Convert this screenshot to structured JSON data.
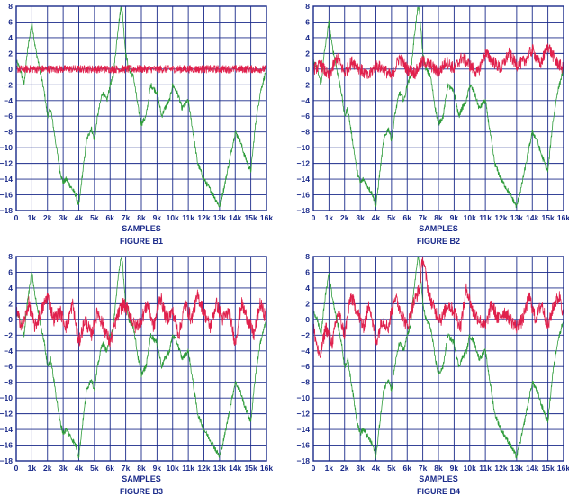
{
  "colors": {
    "frame": "#1a2a8a",
    "grid": "#1a2a8a",
    "green": "#2e9c3a",
    "red": "#e0204c"
  },
  "chart_data": [
    {
      "type": "line",
      "title": "FIGURE B1",
      "xlabel": "SAMPLES",
      "x_ticks": [
        "0",
        "1k",
        "2k",
        "3k",
        "4k",
        "5k",
        "6k",
        "7k",
        "8k",
        "9k",
        "10k",
        "11k",
        "12k",
        "13k",
        "14k",
        "15k",
        "16k"
      ],
      "y_ticks": [
        "8",
        "6",
        "4",
        "2",
        "0",
        "−2",
        "−4",
        "−6",
        "−8",
        "−10",
        "−12",
        "−14",
        "−16",
        "−18"
      ],
      "xlim": [
        0,
        16000
      ],
      "ylim": [
        -18,
        8
      ],
      "grid": true,
      "series": [
        {
          "color": "green",
          "x": [
            0,
            250,
            500,
            700,
            1000,
            1200,
            1500,
            1800,
            2000,
            2200,
            2500,
            2800,
            3000,
            3200,
            3500,
            3800,
            4000,
            4200,
            4500,
            4800,
            5000,
            5200,
            5500,
            5800,
            6000,
            6200,
            6500,
            6700,
            6800,
            7000,
            7200,
            7500,
            7800,
            8000,
            8300,
            8600,
            9000,
            9300,
            9500,
            9800,
            10000,
            10300,
            10600,
            11000,
            11300,
            11600,
            12000,
            12300,
            12600,
            13000,
            13300,
            13600,
            14000,
            14300,
            14600,
            15000,
            15300,
            15600,
            16000
          ],
          "y": [
            1,
            0,
            -2,
            2,
            6,
            3,
            0,
            -3,
            -6,
            -5,
            -9,
            -13,
            -14.5,
            -14,
            -15,
            -16,
            -17.5,
            -14,
            -9,
            -7.5,
            -9,
            -6,
            -3,
            -4,
            -2,
            -1,
            5,
            8,
            7,
            2,
            0,
            -1,
            -5,
            -7,
            -6,
            -2,
            -3,
            -6,
            -5,
            -4,
            -2,
            -3,
            -5,
            -4,
            -8,
            -12,
            -14,
            -15,
            -16,
            -17.5,
            -15,
            -12,
            -8,
            -9,
            -11,
            -13,
            -7,
            -3,
            0
          ]
        },
        {
          "color": "red",
          "x": [
            0,
            16000
          ],
          "y": [
            0,
            0
          ],
          "noise": 0.5
        }
      ]
    },
    {
      "type": "line",
      "title": "FIGURE B2",
      "xlabel": "SAMPLES",
      "x_ticks": [
        "0",
        "1k",
        "2k",
        "3k",
        "4k",
        "5k",
        "6k",
        "7k",
        "8k",
        "9k",
        "10k",
        "11k",
        "12k",
        "13k",
        "14k",
        "15k",
        "16k"
      ],
      "y_ticks": [
        "8",
        "6",
        "4",
        "2",
        "0",
        "−2",
        "−4",
        "−6",
        "−8",
        "−10",
        "−12",
        "−14",
        "−16",
        "−18"
      ],
      "xlim": [
        0,
        16000
      ],
      "ylim": [
        -18,
        8
      ],
      "grid": true,
      "series": [
        {
          "color": "green",
          "x": [
            0,
            250,
            500,
            700,
            1000,
            1200,
            1500,
            1800,
            2000,
            2200,
            2500,
            2800,
            3000,
            3200,
            3500,
            3800,
            4000,
            4200,
            4500,
            4800,
            5000,
            5200,
            5500,
            5800,
            6000,
            6200,
            6500,
            6700,
            6800,
            7000,
            7200,
            7500,
            7800,
            8000,
            8300,
            8600,
            9000,
            9300,
            9500,
            9800,
            10000,
            10300,
            10600,
            11000,
            11300,
            11600,
            12000,
            12300,
            12600,
            13000,
            13300,
            13600,
            14000,
            14300,
            14600,
            15000,
            15300,
            15600,
            16000
          ],
          "y": [
            1,
            0,
            -2,
            2,
            6,
            3,
            0,
            -3,
            -6,
            -5,
            -9,
            -13,
            -14.5,
            -14,
            -15,
            -16,
            -17.5,
            -14,
            -9,
            -7.5,
            -9,
            -6,
            -3,
            -4,
            -2,
            -1,
            5,
            8,
            7,
            2,
            0,
            -1,
            -5,
            -7,
            -6,
            -2,
            -3,
            -6,
            -5,
            -4,
            -2,
            -3,
            -5,
            -4,
            -8,
            -12,
            -14,
            -15,
            -16,
            -17.5,
            -15,
            -12,
            -8,
            -9,
            -11,
            -13,
            -7,
            -3,
            0
          ]
        },
        {
          "color": "red",
          "x": [
            0,
            500,
            1000,
            1500,
            2000,
            2500,
            3000,
            3500,
            4000,
            4500,
            5000,
            5500,
            6000,
            6500,
            7000,
            7500,
            8000,
            8500,
            9000,
            9500,
            10000,
            10500,
            11000,
            11500,
            12000,
            12500,
            13000,
            13500,
            14000,
            14500,
            15000,
            15500,
            16000
          ],
          "y": [
            0,
            0.5,
            -1,
            1.5,
            -0.5,
            1,
            0,
            -1,
            0.5,
            0,
            -1,
            1.5,
            0,
            -0.5,
            1,
            0.5,
            -0.5,
            1,
            0,
            1.5,
            0.5,
            -0.5,
            2,
            1,
            0,
            2,
            0.5,
            1,
            2.5,
            0.5,
            3,
            1,
            0
          ],
          "noise": 0.8
        }
      ]
    },
    {
      "type": "line",
      "title": "FIGURE B3",
      "xlabel": "SAMPLES",
      "x_ticks": [
        "0",
        "1k",
        "2k",
        "3k",
        "4k",
        "5k",
        "6k",
        "7k",
        "8k",
        "9k",
        "10k",
        "11k",
        "12k",
        "13k",
        "14k",
        "15k",
        "16k"
      ],
      "y_ticks": [
        "8",
        "6",
        "4",
        "2",
        "0",
        "−2",
        "−4",
        "−6",
        "−8",
        "−10",
        "−12",
        "−14",
        "−16",
        "−18"
      ],
      "xlim": [
        0,
        16000
      ],
      "ylim": [
        -18,
        8
      ],
      "grid": true,
      "series": [
        {
          "color": "green",
          "x": [
            0,
            250,
            500,
            700,
            1000,
            1200,
            1500,
            1800,
            2000,
            2200,
            2500,
            2800,
            3000,
            3200,
            3500,
            3800,
            4000,
            4200,
            4500,
            4800,
            5000,
            5200,
            5500,
            5800,
            6000,
            6200,
            6500,
            6700,
            6800,
            7000,
            7200,
            7500,
            7800,
            8000,
            8300,
            8600,
            9000,
            9300,
            9500,
            9800,
            10000,
            10300,
            10600,
            11000,
            11300,
            11600,
            12000,
            12300,
            12600,
            13000,
            13300,
            13600,
            14000,
            14300,
            14600,
            15000,
            15300,
            15600,
            16000
          ],
          "y": [
            1,
            0,
            -2,
            2,
            6,
            3,
            0,
            -3,
            -6,
            -5,
            -9,
            -13,
            -14.5,
            -14,
            -15,
            -16,
            -17.5,
            -14,
            -9,
            -7.5,
            -9,
            -6,
            -3,
            -4,
            -2,
            -1,
            5,
            8,
            7,
            2,
            0,
            -1,
            -5,
            -7,
            -6,
            -2,
            -3,
            -6,
            -5,
            -4,
            -2,
            -3,
            -5,
            -4,
            -8,
            -12,
            -14,
            -15,
            -16,
            -17.5,
            -15,
            -12,
            -8,
            -9,
            -11,
            -13,
            -7,
            -3,
            0
          ]
        },
        {
          "color": "red",
          "x": [
            0,
            400,
            800,
            1200,
            1600,
            2000,
            2400,
            2800,
            3200,
            3600,
            4000,
            4400,
            4800,
            5200,
            5600,
            6000,
            6400,
            6800,
            7200,
            7600,
            8000,
            8400,
            8800,
            9200,
            9600,
            10000,
            10400,
            10800,
            11200,
            11600,
            12000,
            12400,
            12800,
            13200,
            13600,
            14000,
            14400,
            14800,
            15200,
            15600,
            16000
          ],
          "y": [
            1,
            -1,
            2,
            -1,
            1,
            3,
            0,
            1,
            -1,
            2,
            -3,
            0,
            -2,
            1,
            -1,
            -3,
            0,
            2,
            1,
            -1,
            0,
            2,
            -1,
            3,
            0,
            1,
            -2,
            2,
            0,
            3,
            1,
            -1,
            2,
            0,
            1,
            -3,
            2,
            0,
            -2,
            2,
            0
          ],
          "noise": 0.9
        }
      ]
    },
    {
      "type": "line",
      "title": "FIGURE B4",
      "xlabel": "SAMPLES",
      "x_ticks": [
        "0",
        "1k",
        "2k",
        "3k",
        "4k",
        "5k",
        "6k",
        "7k",
        "8k",
        "9k",
        "10k",
        "11k",
        "12k",
        "13k",
        "14k",
        "15k",
        "16k"
      ],
      "y_ticks": [
        "8",
        "6",
        "4",
        "2",
        "0",
        "−2",
        "−4",
        "−6",
        "−8",
        "−10",
        "−12",
        "−14",
        "−16",
        "−18"
      ],
      "xlim": [
        0,
        16000
      ],
      "ylim": [
        -18,
        8
      ],
      "grid": true,
      "series": [
        {
          "color": "green",
          "x": [
            0,
            250,
            500,
            700,
            1000,
            1200,
            1500,
            1800,
            2000,
            2200,
            2500,
            2800,
            3000,
            3200,
            3500,
            3800,
            4000,
            4200,
            4500,
            4800,
            5000,
            5200,
            5500,
            5800,
            6000,
            6200,
            6500,
            6700,
            6800,
            7000,
            7200,
            7500,
            7800,
            8000,
            8300,
            8600,
            9000,
            9300,
            9500,
            9800,
            10000,
            10300,
            10600,
            11000,
            11300,
            11600,
            12000,
            12300,
            12600,
            13000,
            13300,
            13600,
            14000,
            14300,
            14600,
            15000,
            15300,
            15600,
            16000
          ],
          "y": [
            1,
            0,
            -2,
            2,
            6,
            3,
            0,
            -3,
            -6,
            -5,
            -9,
            -13,
            -14.5,
            -14,
            -15,
            -16,
            -17.5,
            -14,
            -9,
            -7.5,
            -9,
            -6,
            -3,
            -4,
            -2,
            -1,
            5,
            8,
            7,
            2,
            0,
            -1,
            -5,
            -7,
            -6,
            -2,
            -3,
            -6,
            -5,
            -4,
            -2,
            -3,
            -5,
            -4,
            -8,
            -12,
            -14,
            -15,
            -16,
            -17.5,
            -15,
            -12,
            -8,
            -9,
            -11,
            -13,
            -7,
            -3,
            0
          ]
        },
        {
          "color": "red",
          "x": [
            0,
            400,
            800,
            1200,
            1600,
            2000,
            2400,
            2800,
            3200,
            3600,
            4000,
            4400,
            4800,
            5200,
            5600,
            6000,
            6400,
            6800,
            7000,
            7400,
            7800,
            8200,
            8600,
            9000,
            9400,
            9800,
            10200,
            10600,
            11000,
            11400,
            11800,
            12200,
            12600,
            13000,
            13400,
            13800,
            14200,
            14600,
            15000,
            15400,
            15800,
            16000
          ],
          "y": [
            -1,
            -5,
            -1,
            -3,
            1,
            -2,
            3,
            1,
            -1,
            2,
            -3,
            0,
            -1,
            3,
            1,
            -1,
            2,
            4,
            8,
            3,
            1,
            0,
            2,
            1,
            -1,
            4,
            1,
            0,
            -1,
            2,
            0,
            1,
            0,
            -1,
            0,
            3,
            0,
            2,
            -1,
            2,
            3,
            0
          ],
          "noise": 0.9
        }
      ]
    }
  ]
}
